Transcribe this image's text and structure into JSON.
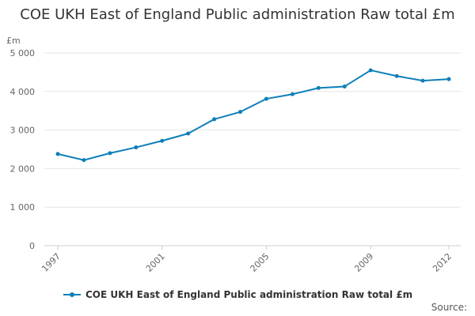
{
  "chart_data": {
    "type": "line",
    "title": "COE UKH East of England Public administration Raw total £m",
    "ylabel": "£m",
    "xlabel": "",
    "x": [
      1997,
      1998,
      1999,
      2000,
      2001,
      2002,
      2003,
      2004,
      2005,
      2006,
      2007,
      2008,
      2009,
      2010,
      2011,
      2012
    ],
    "x_tick_labels": [
      "1997",
      "2001",
      "2005",
      "2009",
      "2012"
    ],
    "x_ticks": [
      1997,
      2001,
      2005,
      2009,
      2012
    ],
    "y_ticks": [
      0,
      1000,
      2000,
      3000,
      4000,
      5000
    ],
    "y_tick_labels": [
      "0",
      "1 000",
      "2 000",
      "3 000",
      "4 000",
      "5 000"
    ],
    "ylim": [
      0,
      5000
    ],
    "grid": true,
    "legend_position": "bottom",
    "series": [
      {
        "name": "COE UKH East of England Public administration Raw total £m",
        "color": "#0d7fb8",
        "values": [
          2380,
          2220,
          2400,
          2550,
          2720,
          2910,
          3280,
          3470,
          3810,
          3930,
          4090,
          4130,
          4550,
          4400,
          4280,
          4320
        ]
      }
    ]
  },
  "source_label": "Source:"
}
